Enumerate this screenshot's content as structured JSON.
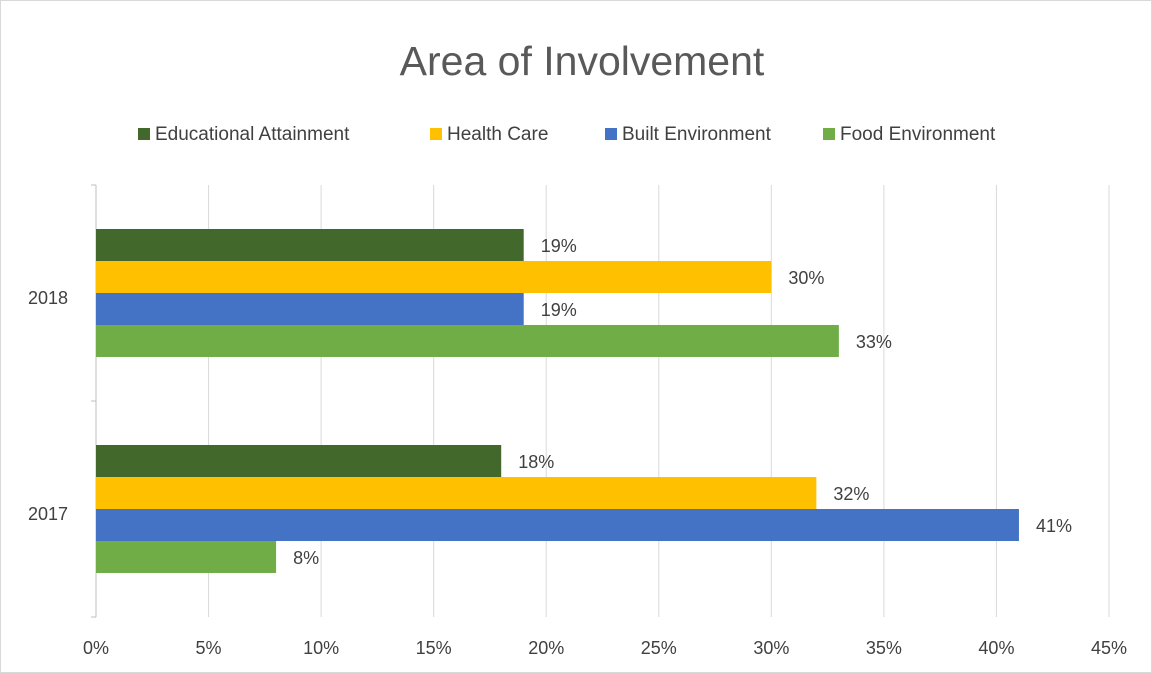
{
  "chart_data": {
    "type": "hbar",
    "title": "Area of Involvement",
    "categories": [
      "2018",
      "2017"
    ],
    "series": [
      {
        "name": "Educational Attainment",
        "color": "#43682b",
        "values": [
          19,
          18
        ],
        "value_labels": [
          "19%",
          "18%"
        ]
      },
      {
        "name": "Health Care",
        "color": "#ffc000",
        "values": [
          30,
          32
        ],
        "value_labels": [
          "30%",
          "32%"
        ]
      },
      {
        "name": "Built Environment",
        "color": "#4472c4",
        "values": [
          19,
          41
        ],
        "value_labels": [
          "19%",
          "41%"
        ]
      },
      {
        "name": "Food Environment",
        "color": "#70ad47",
        "values": [
          33,
          8
        ],
        "value_labels": [
          "33%",
          "8%"
        ]
      }
    ],
    "xlim": [
      0,
      45
    ],
    "xticks": [
      {
        "value": 0,
        "label": "0%"
      },
      {
        "value": 5,
        "label": "5%"
      },
      {
        "value": 10,
        "label": "10%"
      },
      {
        "value": 15,
        "label": "15%"
      },
      {
        "value": 20,
        "label": "20%"
      },
      {
        "value": 25,
        "label": "25%"
      },
      {
        "value": 30,
        "label": "30%"
      },
      {
        "value": 35,
        "label": "35%"
      },
      {
        "value": 40,
        "label": "40%"
      },
      {
        "value": 45,
        "label": "45%"
      }
    ],
    "grid": true,
    "legend": "top"
  }
}
